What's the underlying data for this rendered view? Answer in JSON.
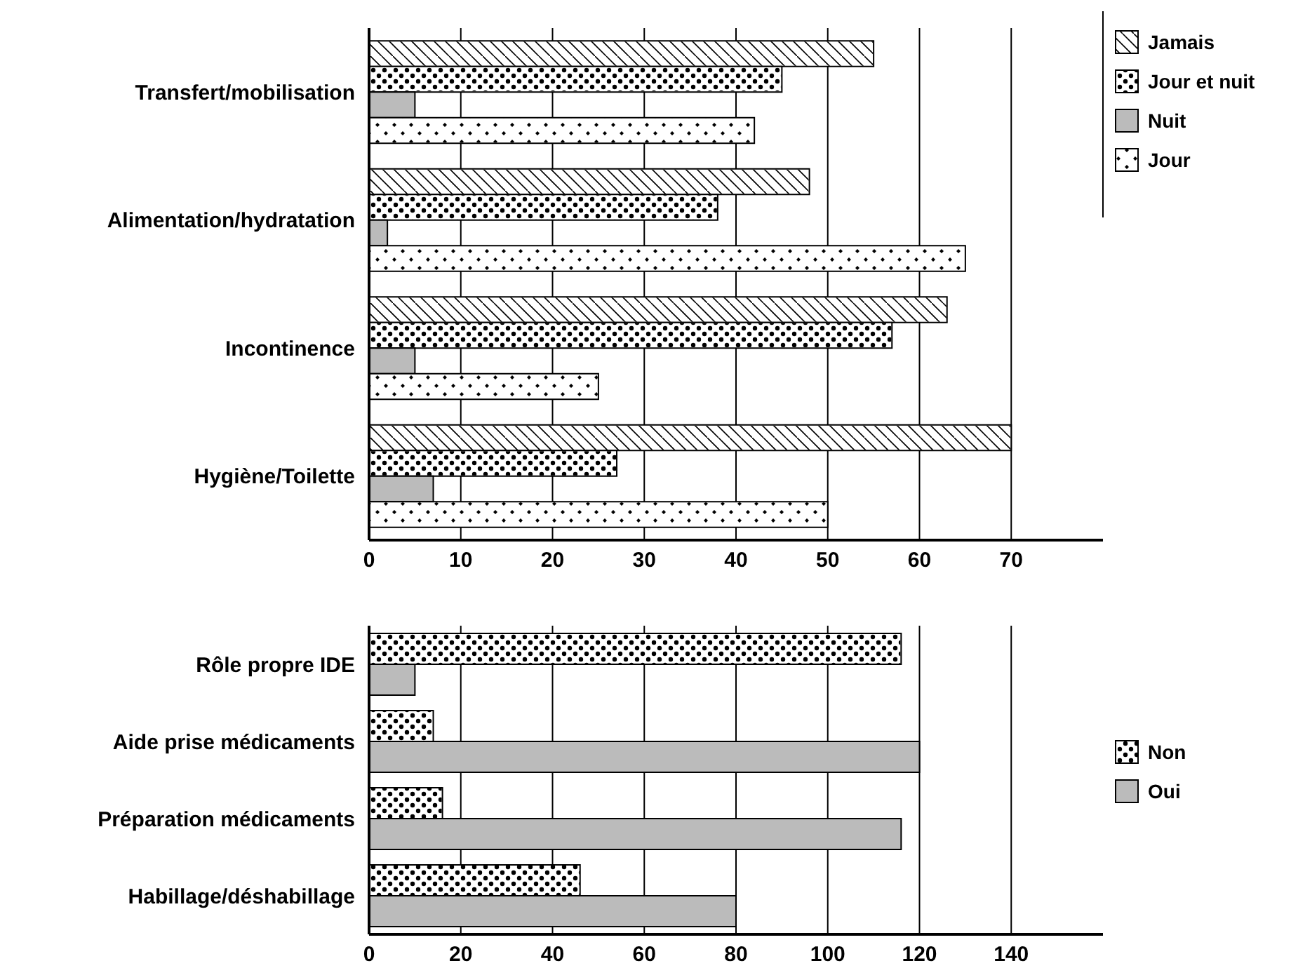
{
  "chart_data": [
    {
      "type": "bar",
      "orientation": "horizontal",
      "categories": [
        "Transfert/mobilisation",
        "Alimentation/hydratation",
        "Incontinence",
        "Hygiène/Toilette"
      ],
      "series": [
        {
          "name": "Jamais",
          "color": "#ffffff",
          "values": [
            55,
            48,
            63,
            70
          ]
        },
        {
          "name": "Jour et nuit",
          "color": "#ffffff",
          "values": [
            45,
            38,
            57,
            27
          ]
        },
        {
          "name": "Nuit",
          "color": "#bbbbbb",
          "values": [
            5,
            2,
            5,
            7
          ]
        },
        {
          "name": "Jour",
          "color": "#ffffff",
          "values": [
            42,
            65,
            25,
            50
          ]
        }
      ],
      "xlim": [
        0,
        80
      ],
      "xticks": [
        0,
        10,
        20,
        30,
        40,
        50,
        60,
        70
      ],
      "grid": "x",
      "legend": "top right"
    },
    {
      "type": "bar",
      "orientation": "horizontal",
      "categories": [
        "Rôle propre IDE",
        "Aide prise médicaments",
        "Préparation médicaments",
        "Habillage/déshabillage"
      ],
      "series": [
        {
          "name": "Non",
          "color": "#ffffff",
          "values": [
            116,
            14,
            16,
            46
          ]
        },
        {
          "name": "Oui",
          "color": "#bbbbbb",
          "values": [
            10,
            120,
            116,
            80
          ]
        }
      ],
      "xlim": [
        0,
        160
      ],
      "xticks": [
        0,
        20,
        40,
        60,
        80,
        100,
        120,
        140
      ],
      "grid": "x",
      "legend": "right"
    }
  ]
}
